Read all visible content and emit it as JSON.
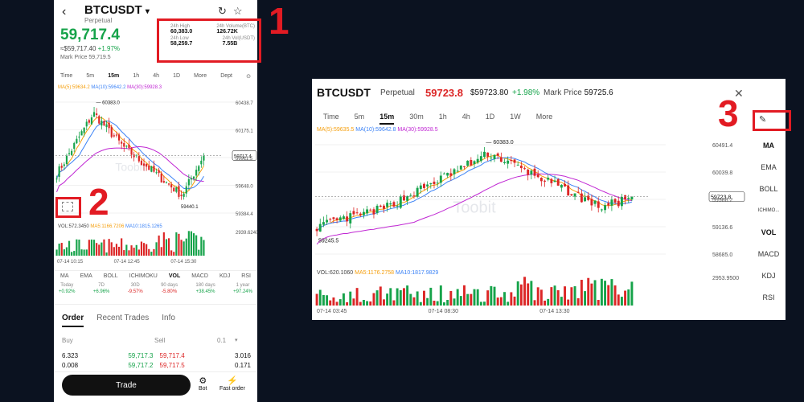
{
  "phone": {
    "back_icon": "chevron-left-icon",
    "symbol": "BTCUSDT",
    "symbol_caret": "▾",
    "subtitle": "Perpetual",
    "price": "59,717.4",
    "fiat_price": "≈$59,717.40",
    "change": "+1.97%",
    "mark_label": "Mark Price",
    "mark_value": "59,719.5",
    "stats": {
      "high_label": "24h High",
      "high_value": "60,383.0",
      "volbtc_label": "24h Volume(BTC)",
      "volbtc_value": "126.72K",
      "low_label": "24h Low",
      "low_value": "58,259.7",
      "volusdt_label": "24h Vol(USDT)",
      "volusdt_value": "7.55B"
    },
    "timeframes": [
      "Time",
      "5m",
      "15m",
      "1h",
      "4h",
      "1D",
      "More",
      "Dept"
    ],
    "active_timeframe": "15m",
    "ma_line": {
      "ma5": "MA(5):59634.2",
      "ma10": "MA(10):59642.2",
      "ma30": "MA(30):59928.3"
    },
    "price_axis": [
      "60438.7",
      "60175.1",
      "59911.5",
      "59648.0",
      "59384.4"
    ],
    "current_tag": "59717.4",
    "hi_label": "60383.0",
    "lo_label": "59440.1",
    "vol_line": {
      "vol": "VOL:572.3450",
      "ma5": "MA5:1166.7206",
      "ma10": "MA10:1815.1265"
    },
    "vol_axis": "2939.6240",
    "time_labels": [
      "07-14 10:15",
      "07-14 12:45",
      "07-14 15:30"
    ],
    "watermark": "Toobit",
    "indicators": [
      "MA",
      "EMA",
      "BOLL",
      "ICHIMOKU",
      "VOL",
      "MACD",
      "KDJ",
      "RSI"
    ],
    "perf": [
      {
        "label": "Today",
        "value": "+0.92%"
      },
      {
        "label": "7D",
        "value": "+6.96%"
      },
      {
        "label": "30D",
        "value": "-9.57%"
      },
      {
        "label": "90 days",
        "value": "-5.80%"
      },
      {
        "label": "180 days",
        "value": "+38.45%"
      },
      {
        "label": "1 year",
        "value": "+97.24%"
      }
    ],
    "tabs": [
      "Order",
      "Recent Trades",
      "Info"
    ],
    "buy_label": "Buy",
    "sell_label": "Sell",
    "step": "0.1",
    "orderbook": [
      {
        "qty": "6.323",
        "bid": "59,717.3",
        "ask": "59,717.4",
        "qty2": "3.016"
      },
      {
        "qty": "0.008",
        "bid": "59,717.2",
        "ask": "59,717.5",
        "qty2": "0.171"
      }
    ],
    "trade_button": "Trade",
    "bot_label": "Bot",
    "fast_label": "Fast order"
  },
  "wide": {
    "symbol": "BTCUSDT",
    "perpetual": "Perpetual",
    "last_price": "59723.8",
    "fiat": "$59723.80",
    "change": "+1.98%",
    "mark_label": "Mark Price",
    "mark_value": "59725.6",
    "timeframes": [
      "Time",
      "5m",
      "15m",
      "30m",
      "1h",
      "4h",
      "1D",
      "1W",
      "More"
    ],
    "active_timeframe": "15m",
    "ma_line": {
      "ma5": "MA(5):59635.5",
      "ma10": "MA(10):59642.8",
      "ma30": "MA(30):59928.5"
    },
    "price_axis": [
      "60491.4",
      "60039.8",
      "59588.2",
      "59136.6",
      "58685.0"
    ],
    "current_tag": "59723.8",
    "hi_label": "60383.0",
    "lo_label": "59245.5",
    "vol_line": {
      "vol": "VOL:620.1060",
      "ma5": "MA5:1176.2758",
      "ma10": "MA10:1817.9829"
    },
    "vol_axis": "2953.9500",
    "time_labels": [
      "07-14 03:45",
      "07-14 08:30",
      "07-14 13:30"
    ],
    "watermark": "Toobit",
    "side_indicators": [
      "MA",
      "EMA",
      "BOLL",
      "ICHIMO...",
      "VOL",
      "MACD",
      "KDJ",
      "RSI"
    ],
    "active_side": [
      "MA",
      "VOL"
    ]
  },
  "annotations": [
    "1",
    "2",
    "3"
  ],
  "colors": {
    "up": "#16a34a",
    "down": "#dc2626",
    "ma5": "#f59e0b",
    "ma10": "#3b82f6",
    "ma30": "#c026d3",
    "highlight": "#e21b23",
    "background": "#0b1220"
  }
}
